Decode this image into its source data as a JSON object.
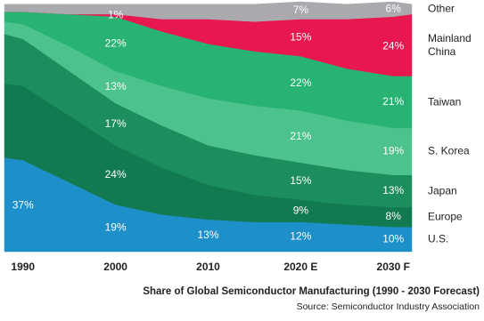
{
  "chart_data": {
    "type": "stacked-area",
    "title": "Share of Global Semiconductor Manufacturing (1990 - 2030 Forecast)",
    "source": "Source: Semiconductor Industry Association",
    "x": [
      1988,
      1990,
      1995,
      2000,
      2005,
      2010,
      2015,
      2020,
      2025,
      2030,
      2032
    ],
    "xlim": [
      1988,
      2032
    ],
    "xticks": [
      1990,
      2000,
      2010,
      {
        "value": 2020,
        "label": "2020 E"
      },
      {
        "value": 2030,
        "label": "2030 F"
      }
    ],
    "ylim": [
      0,
      101
    ],
    "series": [
      {
        "name": "U.S.",
        "color": "#1d8fc9",
        "values": [
          38,
          37,
          28,
          19,
          15,
          13,
          12,
          12,
          11,
          10,
          10
        ],
        "value_labels": [
          null,
          "37%",
          null,
          "19%",
          null,
          "13%",
          null,
          "12%",
          null,
          "10%",
          null
        ]
      },
      {
        "name": "Europe",
        "color": "#127a50",
        "values": [
          30,
          30,
          27,
          24,
          19,
          14,
          11,
          9,
          8,
          8,
          8
        ],
        "value_labels": [
          null,
          null,
          null,
          "24%",
          null,
          null,
          null,
          "9%",
          null,
          "8%",
          null
        ]
      },
      {
        "name": "Japan",
        "color": "#1c8e5e",
        "values": [
          20,
          19,
          18,
          17,
          17,
          16,
          16,
          15,
          14,
          13,
          13
        ],
        "value_labels": [
          null,
          null,
          null,
          "17%",
          null,
          null,
          null,
          "15%",
          null,
          "13%",
          null
        ]
      },
      {
        "name": "S. Korea",
        "color": "#4cc28c",
        "values": [
          5,
          6,
          10,
          13,
          16,
          19,
          20,
          21,
          20,
          19,
          19
        ],
        "value_labels": [
          null,
          null,
          null,
          "13%",
          null,
          null,
          null,
          "21%",
          null,
          "19%",
          null
        ]
      },
      {
        "name": "Taiwan",
        "color": "#29b373",
        "values": [
          4,
          5,
          13,
          22,
          22,
          22,
          22,
          22,
          21,
          21,
          21
        ],
        "value_labels": [
          null,
          null,
          null,
          "22%",
          null,
          null,
          null,
          "22%",
          null,
          "21%",
          null
        ]
      },
      {
        "name": "Mainland China",
        "color": "#e8174f",
        "values": [
          0,
          0,
          0,
          1,
          5,
          10,
          12,
          15,
          20,
          24,
          25
        ],
        "value_labels": [
          null,
          null,
          null,
          "1%",
          null,
          null,
          null,
          "15%",
          null,
          "24%",
          null
        ]
      },
      {
        "name": "Other",
        "color": "#aaaaae",
        "values": [
          3,
          3,
          4,
          4,
          6,
          6,
          7,
          7,
          6,
          6,
          4
        ],
        "value_labels": [
          null,
          null,
          null,
          null,
          null,
          null,
          null,
          "7%",
          null,
          "6%",
          null
        ]
      }
    ]
  }
}
